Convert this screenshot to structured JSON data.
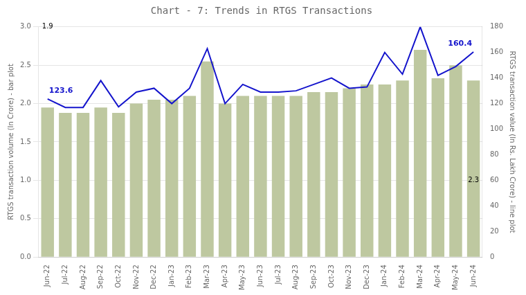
{
  "chart_data": {
    "type": "bar",
    "title": "Chart - 7: Trends in RTGS Transactions",
    "categories": [
      "Jun-22",
      "Jul-22",
      "Aug-22",
      "Sep-22",
      "Oct-22",
      "Nov-22",
      "Dec-22",
      "Jan-23",
      "Feb-23",
      "Mar-23",
      "Apr-23",
      "May-23",
      "Jun-23",
      "Jul-23",
      "Aug-23",
      "Sep-23",
      "Oct-23",
      "Nov-23",
      "Dec-23",
      "Jan-24",
      "Feb-24",
      "Mar-24",
      "Apr-24",
      "May-24",
      "Jun-24"
    ],
    "series": [
      {
        "type": "bar",
        "color": "#bec8a0",
        "values": [
          1.95,
          1.88,
          1.88,
          1.95,
          1.88,
          2.0,
          2.05,
          2.05,
          2.1,
          2.55,
          2.0,
          2.1,
          2.1,
          2.1,
          2.1,
          2.15,
          2.15,
          2.2,
          2.25,
          2.25,
          2.3,
          2.7,
          2.33,
          2.5,
          2.3
        ]
      },
      {
        "type": "line",
        "color": "#1414cc",
        "axis": "y2",
        "values": [
          123.6,
          117.0,
          117.0,
          138.0,
          117.5,
          129.0,
          132.0,
          120.0,
          132.0,
          163.0,
          120.0,
          135.0,
          129.0,
          129.0,
          130.0,
          135.0,
          140.0,
          132.0,
          133.0,
          160.0,
          143.0,
          180.0,
          142.0,
          149.0,
          160.4
        ]
      }
    ],
    "ylabel": "RTGS transaction volume (In Crore) - bar plot",
    "y2label": "RTGS transaction value (In Rs. Lakh Crore) - line plot",
    "ylim": [
      0.0,
      3.0
    ],
    "yticks": [
      {
        "value": 0.0,
        "label": "0.0"
      },
      0.5,
      {
        "value": 1.0,
        "label": "1.0"
      },
      1.5,
      {
        "value": 2.0,
        "label": "2.0"
      },
      2.5,
      {
        "value": 3.0,
        "label": "3.0"
      }
    ],
    "y2lim": [
      0,
      180
    ],
    "y2ticks": [
      0,
      20,
      40,
      60,
      80,
      100,
      120,
      140,
      160,
      180
    ],
    "grid": true,
    "annotations": [
      {
        "text": "1.9",
        "x": "Jun-22",
        "y": 3.0
      },
      {
        "text": "2.3",
        "x": "Jun-24",
        "y": 1.0
      },
      {
        "text": "123.6",
        "x": "Jun-22",
        "y": 123.6,
        "axis": "y2",
        "color": "#1414cc"
      },
      {
        "text": "160.4",
        "x": "Jun-24",
        "y": 160.4,
        "axis": "y2",
        "color": "#1414cc"
      }
    ]
  }
}
